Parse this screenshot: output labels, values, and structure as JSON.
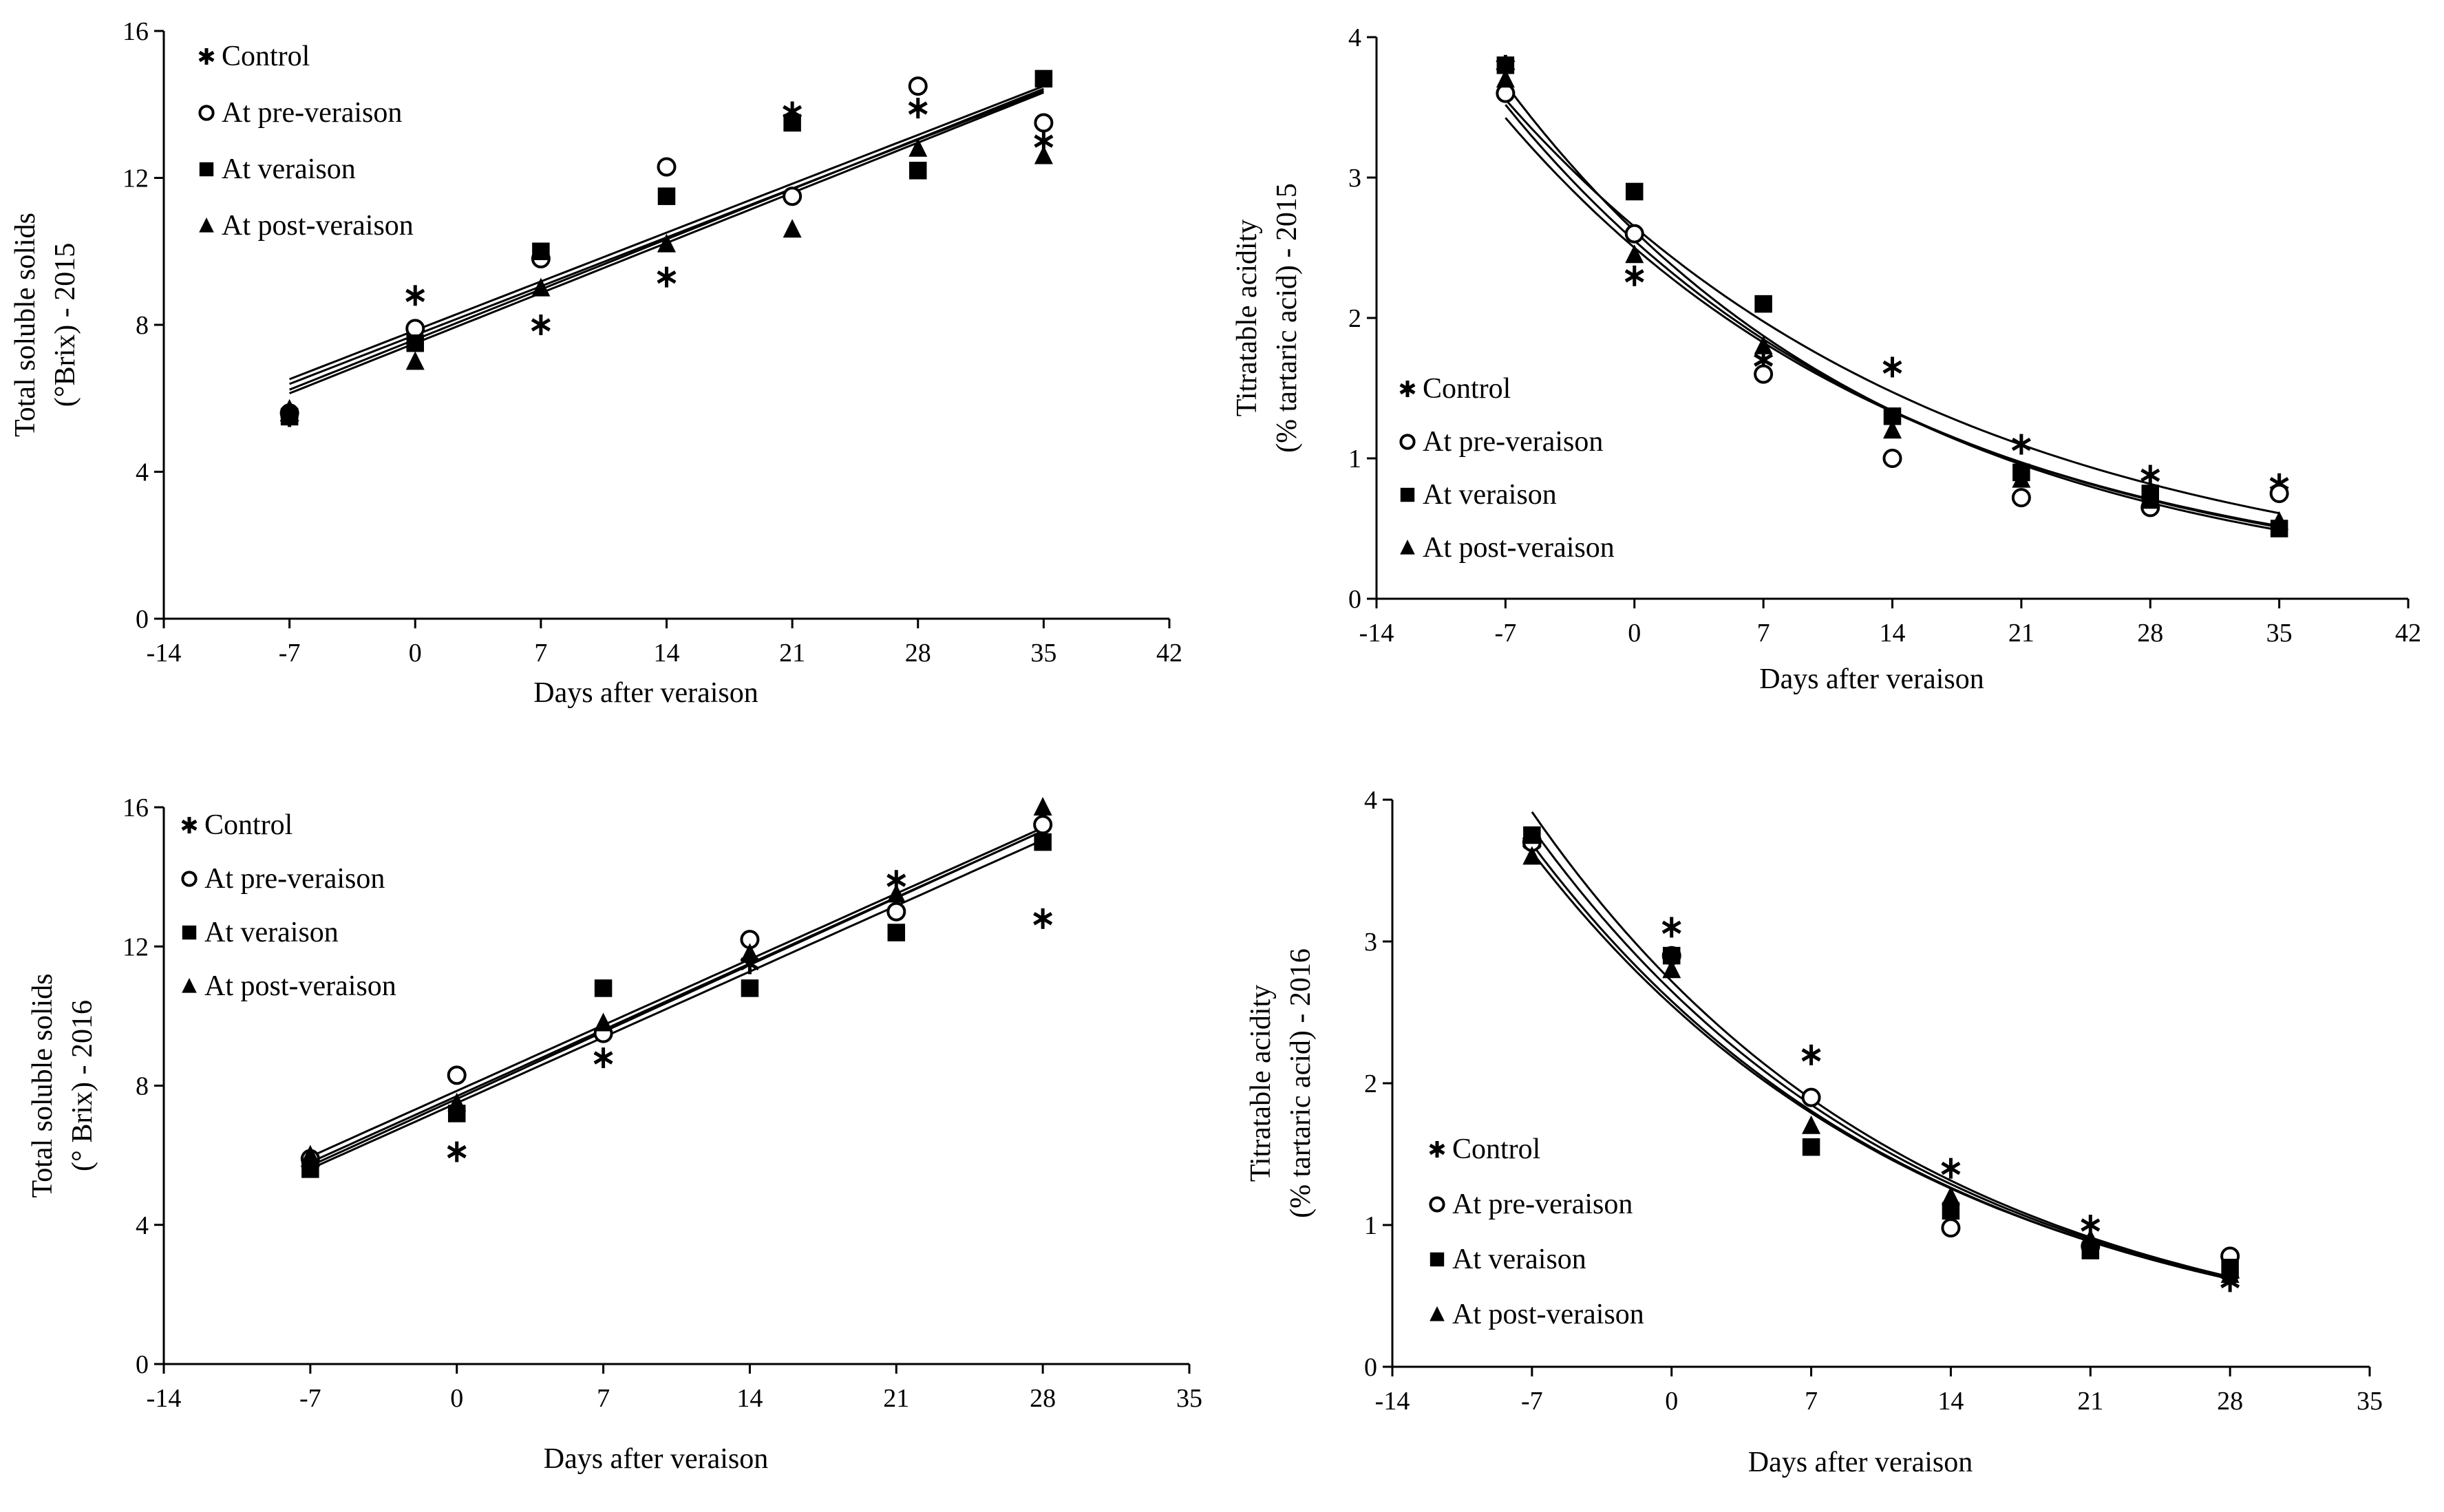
{
  "chart_data": [
    {
      "type": "scatter",
      "panel": "top-left",
      "xlabel": "Days after veraison",
      "ylabel": [
        "Total soluble solids",
        "(°Brix)  - 2015"
      ],
      "xlim": [
        -14,
        42
      ],
      "ylim": [
        0,
        16
      ],
      "xticks": [
        "-14",
        "-7",
        "0",
        "7",
        "14",
        "21",
        "28",
        "35",
        "42"
      ],
      "yticks": [
        "0",
        "4",
        "8",
        "12",
        "16"
      ],
      "legend_position": "top-left",
      "fit": "linear",
      "x": [
        -7,
        0,
        7,
        14,
        21,
        28,
        35
      ],
      "series": [
        {
          "name": "Control",
          "marker": "asterisk",
          "values": [
            5.5,
            8.8,
            8.0,
            9.3,
            13.8,
            13.9,
            13.0
          ],
          "fit_params": [
            7.85,
            0.19
          ]
        },
        {
          "name": "At pre-veraison",
          "marker": "circle",
          "values": [
            5.6,
            7.9,
            9.8,
            12.3,
            11.5,
            14.5,
            13.5
          ],
          "fit_params": [
            7.72,
            0.19
          ]
        },
        {
          "name": "At veraison",
          "marker": "square",
          "values": [
            5.5,
            7.5,
            10.0,
            11.5,
            13.5,
            12.2,
            14.7
          ],
          "fit_params": [
            7.6,
            0.195
          ]
        },
        {
          "name": "At post-veraison",
          "marker": "triangle",
          "values": [
            5.7,
            7.0,
            9.0,
            10.2,
            10.6,
            12.8,
            12.6
          ],
          "fit_params": [
            7.5,
            0.195
          ]
        }
      ]
    },
    {
      "type": "scatter",
      "panel": "top-right",
      "xlabel": "Days after veraison",
      "ylabel": [
        "Titratable acidity",
        "(% tartaric acid) - 2015"
      ],
      "xlim": [
        -14,
        42
      ],
      "ylim": [
        0,
        4
      ],
      "xticks": [
        "-14",
        "-7",
        "0",
        "7",
        "14",
        "21",
        "28",
        "35",
        "42"
      ],
      "yticks": [
        "0",
        "1",
        "2",
        "3",
        "4"
      ],
      "legend_position": "bottom-left",
      "fit": "exponential",
      "x": [
        -7,
        0,
        7,
        14,
        21,
        28,
        35
      ],
      "series": [
        {
          "name": "Control",
          "marker": "asterisk",
          "values": [
            3.8,
            2.3,
            1.7,
            1.65,
            1.1,
            0.88,
            0.82
          ],
          "fit_params": [
            2.65,
            -0.042
          ]
        },
        {
          "name": "At pre-veraison",
          "marker": "circle",
          "values": [
            3.6,
            2.6,
            1.6,
            1.0,
            0.72,
            0.65,
            0.75
          ],
          "fit_params": [
            2.55,
            -0.046
          ]
        },
        {
          "name": "At veraison",
          "marker": "square",
          "values": [
            3.8,
            2.9,
            2.1,
            1.3,
            0.9,
            0.75,
            0.5
          ],
          "fit_params": [
            2.62,
            -0.048
          ]
        },
        {
          "name": "At post-veraison",
          "marker": "triangle",
          "values": [
            3.7,
            2.45,
            1.8,
            1.2,
            0.85,
            0.7,
            0.55
          ],
          "fit_params": [
            2.5,
            -0.045
          ]
        }
      ]
    },
    {
      "type": "scatter",
      "panel": "bottom-left",
      "xlabel": "Days after veraison",
      "ylabel": [
        "Total soluble solids",
        "(° Brix)  - 2016"
      ],
      "xlim": [
        -14,
        35
      ],
      "ylim": [
        0,
        16
      ],
      "xticks": [
        "-14",
        "-7",
        "0",
        "7",
        "14",
        "21",
        "28",
        "35"
      ],
      "yticks": [
        "0",
        "4",
        "8",
        "12",
        "16"
      ],
      "legend_position": "top-left",
      "fit": "linear",
      "x": [
        -7,
        0,
        7,
        14,
        21,
        28
      ],
      "series": [
        {
          "name": "Control",
          "marker": "asterisk",
          "values": [
            5.8,
            6.1,
            8.8,
            11.5,
            13.9,
            12.8
          ],
          "fit_params": [
            7.85,
            0.27
          ]
        },
        {
          "name": "At pre-veraison",
          "marker": "circle",
          "values": [
            5.9,
            8.3,
            9.5,
            12.2,
            13.0,
            15.5
          ],
          "fit_params": [
            7.7,
            0.272
          ]
        },
        {
          "name": "At veraison",
          "marker": "square",
          "values": [
            5.6,
            7.2,
            10.8,
            10.8,
            12.4,
            15.0
          ],
          "fit_params": [
            7.5,
            0.27
          ]
        },
        {
          "name": "At post-veraison",
          "marker": "triangle",
          "values": [
            6.0,
            7.5,
            9.8,
            11.8,
            13.5,
            16.0
          ],
          "fit_params": [
            7.62,
            0.275
          ]
        }
      ]
    },
    {
      "type": "scatter",
      "panel": "bottom-right",
      "xlabel": "Days after veraison",
      "ylabel": [
        "Titratable acidity",
        "(% tartaric acid) - 2016"
      ],
      "xlim": [
        -14,
        35
      ],
      "ylim": [
        0,
        4
      ],
      "xticks": [
        "-14",
        "-7",
        "0",
        "7",
        "14",
        "21",
        "28",
        "35"
      ],
      "yticks": [
        "0",
        "1",
        "2",
        "3",
        "4"
      ],
      "legend_position": "bottom-left",
      "fit": "exponential",
      "x": [
        -7,
        0,
        7,
        14,
        21,
        28
      ],
      "series": [
        {
          "name": "Control",
          "marker": "asterisk",
          "values": [
            3.7,
            3.1,
            2.2,
            1.4,
            1.0,
            0.6
          ],
          "fit_params": [
            2.72,
            -0.052
          ]
        },
        {
          "name": "At pre-veraison",
          "marker": "circle",
          "values": [
            3.7,
            2.9,
            1.9,
            0.98,
            0.85,
            0.78
          ],
          "fit_params": [
            2.65,
            -0.0515
          ]
        },
        {
          "name": "At veraison",
          "marker": "square",
          "values": [
            3.75,
            2.9,
            1.55,
            1.1,
            0.82,
            0.7
          ],
          "fit_params": [
            2.58,
            -0.051
          ]
        },
        {
          "name": "At post-veraison",
          "marker": "triangle",
          "values": [
            3.6,
            2.8,
            1.7,
            1.2,
            0.9,
            0.65
          ],
          "fit_params": [
            2.55,
            -0.0505
          ]
        }
      ]
    }
  ]
}
